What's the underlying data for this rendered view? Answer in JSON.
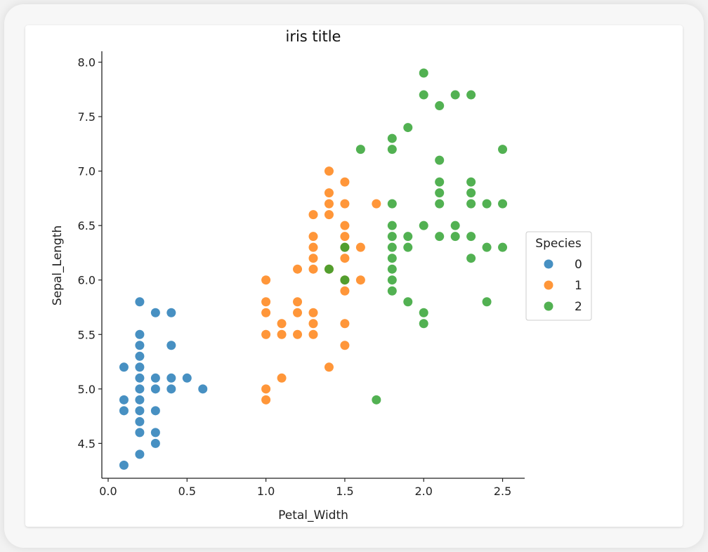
{
  "chart_data": {
    "type": "scatter",
    "title": "iris title",
    "xlabel": "Petal_Width",
    "ylabel": "Sepal_Length",
    "xlim": [
      -0.04,
      2.64
    ],
    "ylim": [
      4.18,
      8.1
    ],
    "xticks": [
      "0.0",
      "0.5",
      "1.0",
      "1.5",
      "2.0",
      "2.5"
    ],
    "yticks": [
      "4.5",
      "5.0",
      "5.5",
      "6.0",
      "6.5",
      "7.0",
      "7.5",
      "8.0"
    ],
    "legend": {
      "title": "Species",
      "position": "right"
    },
    "grid": false,
    "series": [
      {
        "name": "0",
        "color": "#1f77b4",
        "points": [
          [
            0.1,
            4.3
          ],
          [
            0.1,
            4.8
          ],
          [
            0.1,
            4.9
          ],
          [
            0.1,
            5.2
          ],
          [
            0.2,
            4.4
          ],
          [
            0.2,
            4.6
          ],
          [
            0.2,
            4.7
          ],
          [
            0.2,
            4.8
          ],
          [
            0.2,
            4.9
          ],
          [
            0.2,
            5.0
          ],
          [
            0.2,
            5.1
          ],
          [
            0.2,
            5.2
          ],
          [
            0.2,
            5.3
          ],
          [
            0.2,
            5.4
          ],
          [
            0.2,
            5.5
          ],
          [
            0.2,
            5.8
          ],
          [
            0.3,
            4.5
          ],
          [
            0.3,
            4.6
          ],
          [
            0.3,
            4.8
          ],
          [
            0.3,
            5.0
          ],
          [
            0.3,
            5.1
          ],
          [
            0.3,
            5.7
          ],
          [
            0.4,
            5.0
          ],
          [
            0.4,
            5.1
          ],
          [
            0.4,
            5.4
          ],
          [
            0.4,
            5.7
          ],
          [
            0.5,
            5.1
          ],
          [
            0.6,
            5.0
          ]
        ]
      },
      {
        "name": "1",
        "color": "#ff7f0e",
        "points": [
          [
            1.0,
            4.9
          ],
          [
            1.0,
            5.0
          ],
          [
            1.0,
            5.5
          ],
          [
            1.0,
            5.7
          ],
          [
            1.0,
            5.8
          ],
          [
            1.0,
            6.0
          ],
          [
            1.1,
            5.1
          ],
          [
            1.1,
            5.5
          ],
          [
            1.1,
            5.6
          ],
          [
            1.2,
            5.5
          ],
          [
            1.2,
            5.7
          ],
          [
            1.2,
            5.8
          ],
          [
            1.2,
            6.1
          ],
          [
            1.3,
            5.5
          ],
          [
            1.3,
            5.6
          ],
          [
            1.3,
            5.7
          ],
          [
            1.3,
            6.1
          ],
          [
            1.3,
            6.2
          ],
          [
            1.3,
            6.3
          ],
          [
            1.3,
            6.4
          ],
          [
            1.3,
            6.6
          ],
          [
            1.4,
            5.2
          ],
          [
            1.4,
            6.1
          ],
          [
            1.4,
            6.6
          ],
          [
            1.4,
            6.7
          ],
          [
            1.4,
            6.8
          ],
          [
            1.4,
            7.0
          ],
          [
            1.5,
            5.4
          ],
          [
            1.5,
            5.6
          ],
          [
            1.5,
            5.9
          ],
          [
            1.5,
            6.0
          ],
          [
            1.5,
            6.2
          ],
          [
            1.5,
            6.3
          ],
          [
            1.5,
            6.4
          ],
          [
            1.5,
            6.5
          ],
          [
            1.5,
            6.7
          ],
          [
            1.5,
            6.9
          ],
          [
            1.6,
            6.0
          ],
          [
            1.6,
            6.3
          ],
          [
            1.7,
            6.7
          ]
        ]
      },
      {
        "name": "2",
        "color": "#2ca02c",
        "points": [
          [
            1.4,
            6.1
          ],
          [
            1.5,
            6.0
          ],
          [
            1.5,
            6.3
          ],
          [
            1.6,
            7.2
          ],
          [
            1.7,
            4.9
          ],
          [
            1.8,
            5.9
          ],
          [
            1.8,
            6.0
          ],
          [
            1.8,
            6.1
          ],
          [
            1.8,
            6.2
          ],
          [
            1.8,
            6.3
          ],
          [
            1.8,
            6.4
          ],
          [
            1.8,
            6.5
          ],
          [
            1.8,
            6.7
          ],
          [
            1.8,
            7.2
          ],
          [
            1.8,
            7.3
          ],
          [
            1.9,
            5.8
          ],
          [
            1.9,
            6.3
          ],
          [
            1.9,
            6.4
          ],
          [
            1.9,
            7.4
          ],
          [
            2.0,
            5.6
          ],
          [
            2.0,
            5.7
          ],
          [
            2.0,
            6.5
          ],
          [
            2.0,
            7.7
          ],
          [
            2.0,
            7.9
          ],
          [
            2.1,
            6.4
          ],
          [
            2.1,
            6.7
          ],
          [
            2.1,
            6.8
          ],
          [
            2.1,
            6.9
          ],
          [
            2.1,
            7.1
          ],
          [
            2.1,
            7.6
          ],
          [
            2.2,
            6.4
          ],
          [
            2.2,
            6.5
          ],
          [
            2.2,
            7.7
          ],
          [
            2.3,
            6.2
          ],
          [
            2.3,
            6.4
          ],
          [
            2.3,
            6.7
          ],
          [
            2.3,
            6.8
          ],
          [
            2.3,
            6.9
          ],
          [
            2.3,
            7.7
          ],
          [
            2.4,
            5.8
          ],
          [
            2.4,
            6.3
          ],
          [
            2.4,
            6.7
          ],
          [
            2.5,
            6.3
          ],
          [
            2.5,
            6.7
          ],
          [
            2.5,
            7.2
          ]
        ]
      }
    ]
  }
}
